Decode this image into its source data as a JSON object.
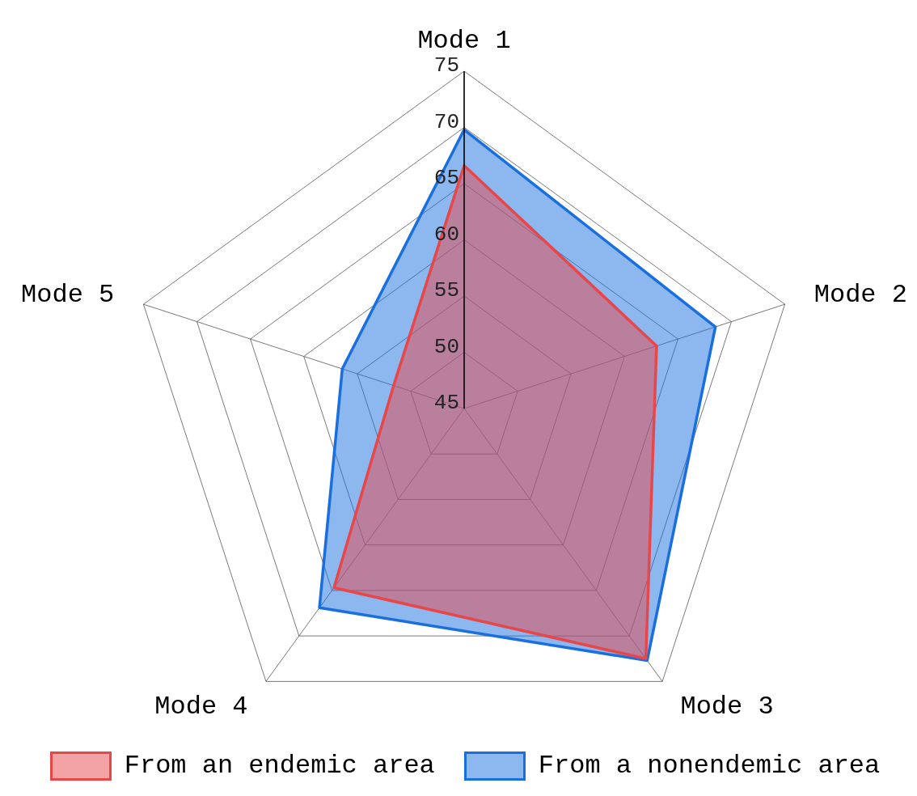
{
  "chart_data": {
    "type": "radar",
    "categories": [
      "Mode 1",
      "Mode 2",
      "Mode 3",
      "Mode 4",
      "Mode 5"
    ],
    "series": [
      {
        "name": "From an endemic area",
        "color": "#e8474a",
        "values": [
          66.6,
          63.0,
          72.5,
          64.7,
          51.6
        ]
      },
      {
        "name": "From a nonendemic area",
        "color": "#1a6fdf",
        "values": [
          69.8,
          68.5,
          72.7,
          66.9,
          56.4
        ]
      }
    ],
    "ylim": [
      45,
      75
    ],
    "yticks": [
      45,
      50,
      55,
      60,
      65,
      70,
      75
    ],
    "grid": true,
    "legend": "bottom"
  }
}
